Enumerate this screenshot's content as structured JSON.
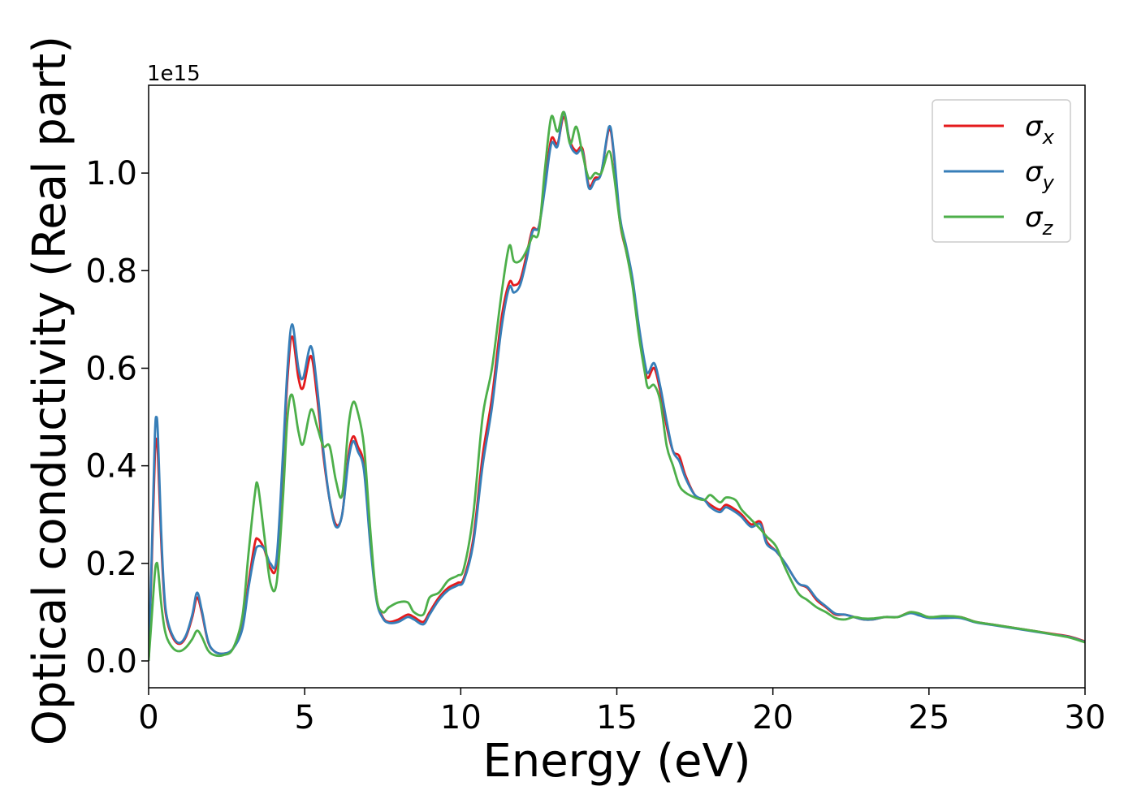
{
  "chart_data": {
    "type": "line",
    "xlabel": "Energy (eV)",
    "ylabel": "Optical conductivity (Real part)",
    "y_offset_label": "1e15",
    "xlim": [
      0,
      30
    ],
    "ylim": [
      -0.055,
      1.18
    ],
    "x_ticks": [
      0,
      5,
      10,
      15,
      20,
      25,
      30
    ],
    "x_tick_labels": [
      "0",
      "5",
      "10",
      "15",
      "20",
      "25",
      "30"
    ],
    "y_ticks": [
      0.0,
      0.2,
      0.4,
      0.6,
      0.8,
      1.0
    ],
    "y_tick_labels": [
      "0.0",
      "0.2",
      "0.4",
      "0.6",
      "0.8",
      "1.0"
    ],
    "grid": false,
    "legend_position": "top-right",
    "series": [
      {
        "name": "σx",
        "name_base": "σ",
        "name_sub": "x",
        "color": "#e41a1c",
        "x": [
          0,
          0.1,
          0.2,
          0.25,
          0.3,
          0.4,
          0.5,
          0.6,
          0.8,
          1.0,
          1.2,
          1.4,
          1.55,
          1.7,
          1.9,
          2.1,
          2.4,
          2.7,
          3.0,
          3.2,
          3.4,
          3.5,
          3.7,
          3.9,
          4.1,
          4.3,
          4.45,
          4.6,
          4.8,
          4.95,
          5.2,
          5.4,
          5.6,
          5.8,
          6.0,
          6.2,
          6.4,
          6.55,
          6.7,
          6.9,
          7.1,
          7.3,
          7.5,
          7.7,
          8.0,
          8.3,
          8.5,
          8.8,
          9.0,
          9.3,
          9.6,
          9.9,
          10.1,
          10.4,
          10.7,
          11.0,
          11.3,
          11.55,
          11.7,
          11.9,
          12.1,
          12.3,
          12.5,
          12.7,
          12.9,
          13.1,
          13.3,
          13.5,
          13.7,
          13.9,
          14.1,
          14.3,
          14.5,
          14.75,
          14.9,
          15.1,
          15.3,
          15.5,
          15.7,
          15.9,
          16.0,
          16.2,
          16.4,
          16.6,
          16.8,
          17.0,
          17.2,
          17.5,
          17.8,
          18.0,
          18.3,
          18.5,
          18.8,
          19.0,
          19.3,
          19.6,
          19.8,
          20.1,
          20.4,
          20.8,
          21.1,
          21.4,
          21.7,
          22.0,
          22.3,
          22.6,
          22.9,
          23.2,
          23.6,
          24.0,
          24.4,
          24.7,
          25.0,
          25.5,
          26.0,
          26.5,
          27.0,
          27.5,
          28.0,
          28.5,
          29.0,
          29.5,
          30.0
        ],
        "values": [
          0.0,
          0.2,
          0.42,
          0.455,
          0.42,
          0.25,
          0.13,
          0.08,
          0.045,
          0.035,
          0.05,
          0.09,
          0.13,
          0.1,
          0.04,
          0.02,
          0.015,
          0.025,
          0.07,
          0.16,
          0.24,
          0.25,
          0.23,
          0.19,
          0.2,
          0.4,
          0.58,
          0.665,
          0.58,
          0.56,
          0.625,
          0.54,
          0.42,
          0.33,
          0.28,
          0.3,
          0.42,
          0.46,
          0.44,
          0.4,
          0.25,
          0.13,
          0.09,
          0.08,
          0.085,
          0.095,
          0.09,
          0.08,
          0.1,
          0.13,
          0.15,
          0.16,
          0.17,
          0.25,
          0.42,
          0.54,
          0.7,
          0.775,
          0.77,
          0.78,
          0.83,
          0.885,
          0.89,
          0.98,
          1.07,
          1.06,
          1.115,
          1.065,
          1.045,
          1.05,
          0.975,
          0.99,
          1.0,
          1.09,
          1.04,
          0.9,
          0.84,
          0.78,
          0.68,
          0.6,
          0.58,
          0.6,
          0.55,
          0.48,
          0.43,
          0.42,
          0.38,
          0.34,
          0.33,
          0.32,
          0.31,
          0.32,
          0.31,
          0.3,
          0.28,
          0.285,
          0.245,
          0.225,
          0.2,
          0.16,
          0.15,
          0.125,
          0.11,
          0.095,
          0.095,
          0.09,
          0.085,
          0.085,
          0.09,
          0.09,
          0.1,
          0.095,
          0.09,
          0.09,
          0.09,
          0.08,
          0.075,
          0.07,
          0.065,
          0.06,
          0.055,
          0.05,
          0.04
        ]
      },
      {
        "name": "σy",
        "name_base": "σ",
        "name_sub": "y",
        "color": "#377eb8",
        "x": [
          0,
          0.1,
          0.2,
          0.25,
          0.3,
          0.4,
          0.5,
          0.6,
          0.8,
          1.0,
          1.2,
          1.4,
          1.55,
          1.7,
          1.9,
          2.1,
          2.4,
          2.7,
          3.0,
          3.2,
          3.4,
          3.5,
          3.7,
          3.9,
          4.1,
          4.3,
          4.45,
          4.6,
          4.8,
          4.95,
          5.2,
          5.4,
          5.6,
          5.8,
          6.0,
          6.2,
          6.4,
          6.55,
          6.7,
          6.9,
          7.1,
          7.3,
          7.5,
          7.7,
          8.0,
          8.3,
          8.5,
          8.8,
          9.0,
          9.3,
          9.6,
          9.9,
          10.1,
          10.4,
          10.7,
          11.0,
          11.3,
          11.55,
          11.7,
          11.9,
          12.1,
          12.3,
          12.5,
          12.7,
          12.9,
          13.1,
          13.3,
          13.5,
          13.7,
          13.9,
          14.1,
          14.3,
          14.5,
          14.75,
          14.9,
          15.1,
          15.3,
          15.5,
          15.7,
          15.9,
          16.0,
          16.2,
          16.4,
          16.6,
          16.8,
          17.0,
          17.2,
          17.5,
          17.8,
          18.0,
          18.3,
          18.5,
          18.8,
          19.0,
          19.3,
          19.6,
          19.8,
          20.1,
          20.4,
          20.8,
          21.1,
          21.4,
          21.7,
          22.0,
          22.3,
          22.6,
          22.9,
          23.2,
          23.6,
          24.0,
          24.4,
          24.7,
          25.0,
          25.5,
          26.0,
          26.5,
          27.0,
          27.5,
          28.0,
          28.5,
          29.0,
          29.5,
          30.0
        ],
        "values": [
          0.0,
          0.22,
          0.46,
          0.5,
          0.46,
          0.27,
          0.14,
          0.085,
          0.048,
          0.037,
          0.053,
          0.095,
          0.14,
          0.105,
          0.042,
          0.02,
          0.015,
          0.025,
          0.065,
          0.15,
          0.22,
          0.235,
          0.23,
          0.2,
          0.21,
          0.42,
          0.6,
          0.69,
          0.6,
          0.58,
          0.645,
          0.56,
          0.43,
          0.33,
          0.275,
          0.3,
          0.41,
          0.45,
          0.43,
          0.39,
          0.24,
          0.125,
          0.088,
          0.078,
          0.08,
          0.09,
          0.085,
          0.075,
          0.095,
          0.125,
          0.145,
          0.155,
          0.165,
          0.24,
          0.4,
          0.52,
          0.68,
          0.765,
          0.755,
          0.77,
          0.82,
          0.88,
          0.89,
          0.97,
          1.06,
          1.055,
          1.125,
          1.06,
          1.04,
          1.045,
          0.97,
          0.985,
          1.0,
          1.095,
          1.045,
          0.91,
          0.85,
          0.785,
          0.69,
          0.61,
          0.59,
          0.61,
          0.56,
          0.49,
          0.43,
          0.41,
          0.375,
          0.34,
          0.33,
          0.315,
          0.305,
          0.315,
          0.305,
          0.295,
          0.275,
          0.28,
          0.24,
          0.225,
          0.2,
          0.16,
          0.152,
          0.128,
          0.112,
          0.097,
          0.095,
          0.09,
          0.085,
          0.085,
          0.09,
          0.09,
          0.098,
          0.093,
          0.088,
          0.088,
          0.088,
          0.079,
          0.074,
          0.069,
          0.064,
          0.059,
          0.054,
          0.049,
          0.039
        ]
      },
      {
        "name": "σz",
        "name_base": "σ",
        "name_sub": "z",
        "color": "#4daf4a",
        "x": [
          0,
          0.1,
          0.2,
          0.25,
          0.3,
          0.4,
          0.5,
          0.6,
          0.8,
          1.0,
          1.2,
          1.4,
          1.55,
          1.7,
          1.9,
          2.1,
          2.4,
          2.7,
          3.0,
          3.2,
          3.4,
          3.5,
          3.7,
          3.9,
          4.1,
          4.3,
          4.45,
          4.6,
          4.8,
          4.95,
          5.2,
          5.4,
          5.6,
          5.8,
          6.0,
          6.2,
          6.4,
          6.55,
          6.7,
          6.9,
          7.1,
          7.3,
          7.5,
          7.7,
          8.0,
          8.3,
          8.5,
          8.8,
          9.0,
          9.3,
          9.6,
          9.9,
          10.1,
          10.4,
          10.7,
          11.0,
          11.3,
          11.55,
          11.7,
          11.9,
          12.1,
          12.3,
          12.5,
          12.7,
          12.9,
          13.1,
          13.3,
          13.5,
          13.7,
          13.9,
          14.1,
          14.3,
          14.5,
          14.75,
          14.9,
          15.1,
          15.3,
          15.5,
          15.7,
          15.9,
          16.0,
          16.2,
          16.4,
          16.6,
          16.8,
          17.0,
          17.2,
          17.5,
          17.8,
          18.0,
          18.3,
          18.5,
          18.8,
          19.0,
          19.3,
          19.6,
          19.8,
          20.1,
          20.4,
          20.8,
          21.1,
          21.4,
          21.7,
          22.0,
          22.3,
          22.6,
          22.9,
          23.2,
          23.6,
          24.0,
          24.4,
          24.7,
          25.0,
          25.5,
          26.0,
          26.5,
          27.0,
          27.5,
          28.0,
          28.5,
          29.0,
          29.5,
          30.0
        ],
        "values": [
          0.0,
          0.09,
          0.18,
          0.2,
          0.19,
          0.12,
          0.07,
          0.045,
          0.025,
          0.02,
          0.028,
          0.045,
          0.062,
          0.05,
          0.022,
          0.012,
          0.012,
          0.025,
          0.09,
          0.22,
          0.34,
          0.36,
          0.26,
          0.16,
          0.16,
          0.33,
          0.5,
          0.545,
          0.47,
          0.445,
          0.515,
          0.48,
          0.44,
          0.44,
          0.37,
          0.34,
          0.48,
          0.53,
          0.51,
          0.44,
          0.27,
          0.13,
          0.1,
          0.11,
          0.12,
          0.12,
          0.1,
          0.095,
          0.13,
          0.14,
          0.165,
          0.175,
          0.19,
          0.3,
          0.5,
          0.6,
          0.75,
          0.85,
          0.82,
          0.82,
          0.84,
          0.87,
          0.88,
          1.01,
          1.115,
          1.085,
          1.125,
          1.06,
          1.095,
          1.04,
          0.99,
          1.0,
          1.0,
          1.045,
          1.0,
          0.9,
          0.84,
          0.77,
          0.67,
          0.59,
          0.56,
          0.565,
          0.53,
          0.44,
          0.4,
          0.36,
          0.345,
          0.335,
          0.33,
          0.34,
          0.325,
          0.335,
          0.33,
          0.31,
          0.29,
          0.27,
          0.255,
          0.235,
          0.19,
          0.14,
          0.125,
          0.11,
          0.1,
          0.088,
          0.085,
          0.09,
          0.087,
          0.087,
          0.09,
          0.09,
          0.1,
          0.097,
          0.09,
          0.092,
          0.09,
          0.08,
          0.075,
          0.07,
          0.065,
          0.06,
          0.054,
          0.048,
          0.038
        ]
      }
    ]
  }
}
